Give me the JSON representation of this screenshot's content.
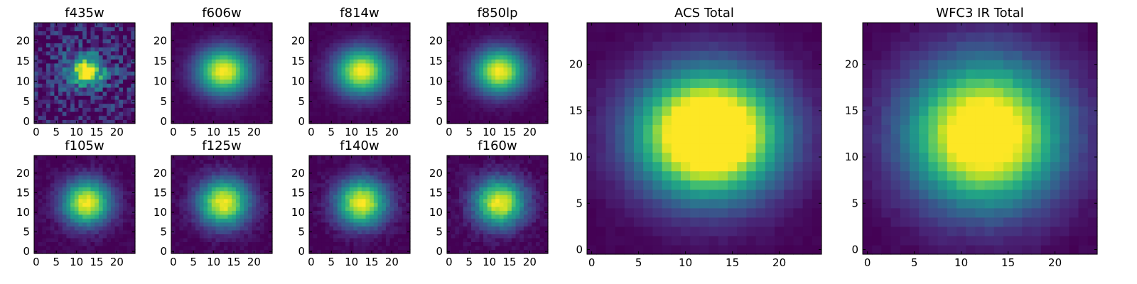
{
  "chart_data": [
    {
      "type": "heatmap",
      "title": "f435w",
      "center": [
        12.5,
        12.5
      ],
      "sigma": [
        2.6,
        2.2
      ],
      "noise": 0.22,
      "peak": 1.0,
      "floor": 0.22,
      "xticks": [
        0,
        5,
        10,
        15,
        20
      ],
      "yticks": [
        0,
        5,
        10,
        15,
        20
      ],
      "xlim": [
        -0.5,
        24.5
      ],
      "ylim": [
        -0.5,
        24.5
      ],
      "colormap": "viridis"
    },
    {
      "type": "heatmap",
      "title": "f606w",
      "center": [
        12.5,
        12.5
      ],
      "sigma": [
        4.6,
        4.0
      ],
      "noise": 0.02,
      "peak": 1.0,
      "floor": 0.0,
      "xticks": [
        0,
        5,
        10,
        15,
        20
      ],
      "yticks": [
        0,
        5,
        10,
        15,
        20
      ],
      "xlim": [
        -0.5,
        24.5
      ],
      "ylim": [
        -0.5,
        24.5
      ],
      "colormap": "viridis"
    },
    {
      "type": "heatmap",
      "title": "f814w",
      "center": [
        12.5,
        12.5
      ],
      "sigma": [
        4.6,
        4.0
      ],
      "noise": 0.02,
      "peak": 1.0,
      "floor": 0.0,
      "xticks": [
        0,
        5,
        10,
        15,
        20
      ],
      "yticks": [
        0,
        5,
        10,
        15,
        20
      ],
      "xlim": [
        -0.5,
        24.5
      ],
      "ylim": [
        -0.5,
        24.5
      ],
      "colormap": "viridis"
    },
    {
      "type": "heatmap",
      "title": "f850lp",
      "center": [
        12.5,
        12.5
      ],
      "sigma": [
        4.4,
        3.9
      ],
      "noise": 0.02,
      "peak": 1.0,
      "floor": 0.0,
      "xticks": [
        0,
        5,
        10,
        15,
        20
      ],
      "yticks": [
        0,
        5,
        10,
        15,
        20
      ],
      "xlim": [
        -0.5,
        24.5
      ],
      "ylim": [
        -0.5,
        24.5
      ],
      "colormap": "viridis"
    },
    {
      "type": "heatmap",
      "title": "f105w",
      "center": [
        12.5,
        12.5
      ],
      "sigma": [
        4.2,
        4.0
      ],
      "noise": 0.04,
      "peak": 1.0,
      "floor": 0.0,
      "xticks": [
        0,
        5,
        10,
        15,
        20
      ],
      "yticks": [
        0,
        5,
        10,
        15,
        20
      ],
      "xlim": [
        -0.5,
        24.5
      ],
      "ylim": [
        -0.5,
        24.5
      ],
      "colormap": "viridis"
    },
    {
      "type": "heatmap",
      "title": "f125w",
      "center": [
        12.5,
        12.5
      ],
      "sigma": [
        4.4,
        4.2
      ],
      "noise": 0.04,
      "peak": 1.0,
      "floor": 0.0,
      "xticks": [
        0,
        5,
        10,
        15,
        20
      ],
      "yticks": [
        0,
        5,
        10,
        15,
        20
      ],
      "xlim": [
        -0.5,
        24.5
      ],
      "ylim": [
        -0.5,
        24.5
      ],
      "colormap": "viridis"
    },
    {
      "type": "heatmap",
      "title": "f140w",
      "center": [
        12.5,
        12.5
      ],
      "sigma": [
        4.4,
        4.2
      ],
      "noise": 0.04,
      "peak": 1.0,
      "floor": 0.0,
      "xticks": [
        0,
        5,
        10,
        15,
        20
      ],
      "yticks": [
        0,
        5,
        10,
        15,
        20
      ],
      "xlim": [
        -0.5,
        24.5
      ],
      "ylim": [
        -0.5,
        24.5
      ],
      "colormap": "viridis"
    },
    {
      "type": "heatmap",
      "title": "f160w",
      "center": [
        12.5,
        12.5
      ],
      "sigma": [
        4.4,
        4.2
      ],
      "noise": 0.05,
      "peak": 1.0,
      "floor": 0.0,
      "xticks": [
        0,
        5,
        10,
        15,
        20
      ],
      "yticks": [
        0,
        5,
        10,
        15,
        20
      ],
      "xlim": [
        -0.5,
        24.5
      ],
      "ylim": [
        -0.5,
        24.5
      ],
      "colormap": "viridis"
    },
    {
      "type": "heatmap",
      "title": "ACS Total",
      "center": [
        12.5,
        12.5
      ],
      "sigma": [
        5.2,
        4.6
      ],
      "noise": 0.015,
      "peak": 1.45,
      "floor": 0.0,
      "xticks": [
        0,
        5,
        10,
        15,
        20
      ],
      "yticks": [
        0,
        5,
        10,
        15,
        20
      ],
      "xlim": [
        -0.5,
        24.5
      ],
      "ylim": [
        -0.5,
        24.5
      ],
      "colormap": "viridis"
    },
    {
      "type": "heatmap",
      "title": "WFC3 IR Total",
      "center": [
        12.5,
        12.5
      ],
      "sigma": [
        5.6,
        5.3
      ],
      "noise": 0.02,
      "peak": 1.25,
      "floor": 0.0,
      "xticks": [
        0,
        5,
        10,
        15,
        20
      ],
      "yticks": [
        0,
        5,
        10,
        15,
        20
      ],
      "xlim": [
        -0.5,
        24.5
      ],
      "ylim": [
        -0.5,
        24.5
      ],
      "colormap": "viridis"
    }
  ]
}
